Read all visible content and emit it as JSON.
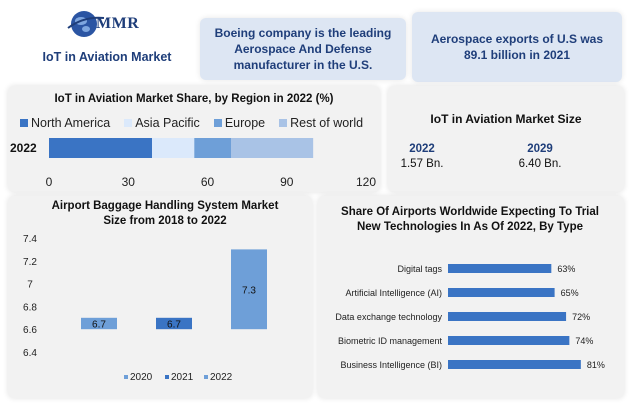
{
  "header": {
    "brand": "MMR",
    "subtitle": "IoT in Aviation Market"
  },
  "callouts": [
    "Boeing company is the leading Aerospace And Defense manufacturer in the U.S.",
    "Aerospace exports of U.S was 89.1 billion in 2021"
  ],
  "colors": {
    "navy": "#1f3e7a",
    "na": "#3a74c4",
    "ap": "#dbe9fb",
    "eu": "#6e9fd8",
    "row": "#a9c3e6",
    "panel": "#f2f2f2",
    "callout": "#dde6f3"
  },
  "market_size": {
    "title": "IoT in Aviation Market Size",
    "years": [
      "2022",
      "2029"
    ],
    "values": [
      "1.57 Bn.",
      "6.40 Bn."
    ]
  },
  "chart_data": [
    {
      "type": "bar",
      "orientation": "horizontal-stacked",
      "title": "IoT in Aviation Market Share, by Region in 2022 (%)",
      "categories": [
        "2022"
      ],
      "series": [
        {
          "name": "North America",
          "values": [
            39
          ]
        },
        {
          "name": "Asia Pacific",
          "values": [
            16
          ]
        },
        {
          "name": "Europe",
          "values": [
            14
          ]
        },
        {
          "name": "Rest of world",
          "values": [
            31
          ]
        }
      ],
      "xlim": [
        0,
        120
      ],
      "xticks": [
        "0",
        "30",
        "60",
        "90",
        "120"
      ],
      "legend": "top"
    },
    {
      "type": "bar",
      "title": "Airport Baggage Handling System Market Size from 2018 to 2022",
      "categories": [
        "2020",
        "2021",
        "2022"
      ],
      "values": [
        6.7,
        6.7,
        7.3
      ],
      "data_labels": [
        "6.7",
        "6.7",
        "7.3"
      ],
      "ylim": [
        6.4,
        7.4
      ],
      "yticks": [
        "7.4",
        "7.2",
        "7",
        "6.8",
        "6.6",
        "6.4"
      ],
      "legend_entries": [
        "2020",
        "2021",
        "2022"
      ],
      "legend": "bottom"
    },
    {
      "type": "bar",
      "orientation": "horizontal",
      "title": "Share Of Airports Worldwide Expecting To Trial New Technologies In As Of 2022, By Type",
      "categories": [
        "Digital tags",
        "Artificial Intelligence (AI)",
        "Data exchange technology",
        "Biometric ID management",
        "Business Intelligence (BI)"
      ],
      "values": [
        63,
        65,
        72,
        74,
        81
      ],
      "data_labels": [
        "63%",
        "65%",
        "72%",
        "74%",
        "81%"
      ]
    }
  ]
}
